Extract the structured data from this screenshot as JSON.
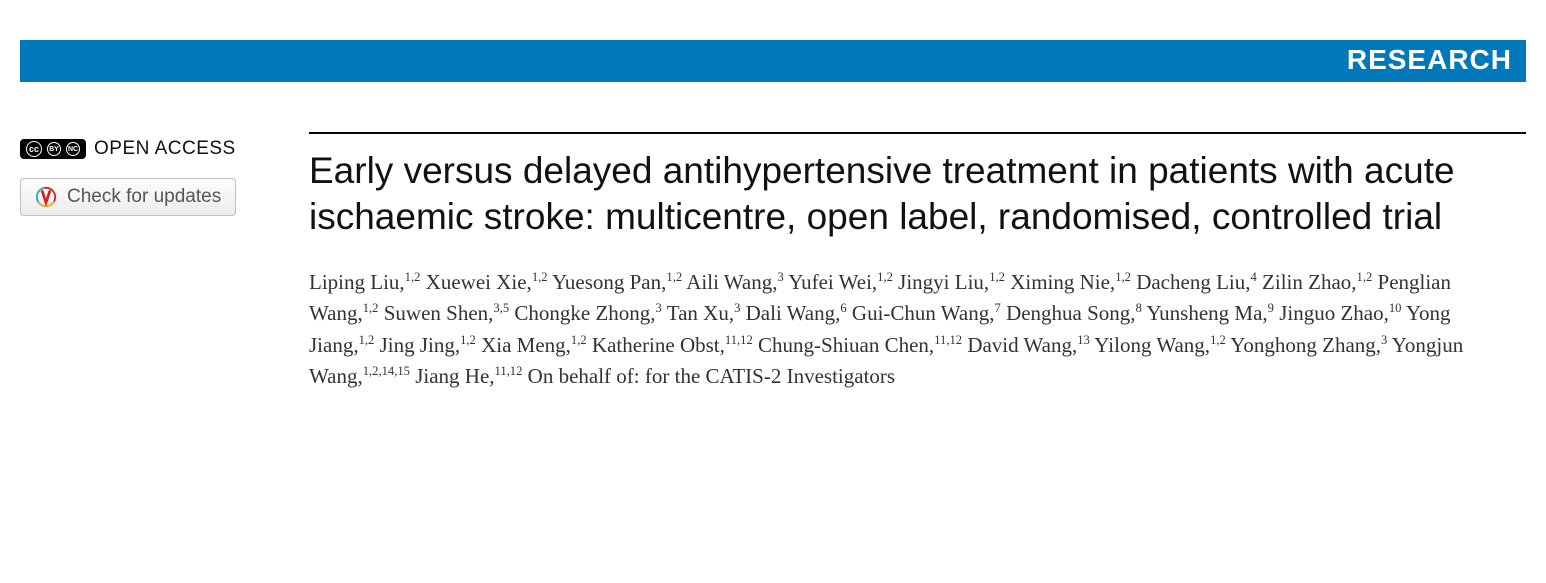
{
  "banner": {
    "label": "RESEARCH",
    "bg_color": "#0178ba",
    "text_color": "#ffffff"
  },
  "sidebar": {
    "open_access_label": "OPEN ACCESS",
    "cc_badge": {
      "cc": "cc",
      "by": "BY",
      "nc": "NC"
    },
    "updates_button_label": "Check for updates"
  },
  "article": {
    "title": "Early versus delayed antihypertensive treatment in patients with acute ischaemic stroke: multicentre, open label, randomised, controlled trial",
    "authors": [
      {
        "name": "Liping Liu",
        "aff": "1,2"
      },
      {
        "name": "Xuewei Xie",
        "aff": "1,2"
      },
      {
        "name": "Yuesong Pan",
        "aff": "1,2"
      },
      {
        "name": "Aili Wang",
        "aff": "3"
      },
      {
        "name": "Yufei Wei",
        "aff": "1,2"
      },
      {
        "name": "Jingyi Liu",
        "aff": "1,2"
      },
      {
        "name": "Ximing Nie",
        "aff": "1,2"
      },
      {
        "name": "Dacheng Liu",
        "aff": "4"
      },
      {
        "name": "Zilin Zhao",
        "aff": "1,2"
      },
      {
        "name": "Penglian Wang",
        "aff": "1,2"
      },
      {
        "name": "Suwen Shen",
        "aff": "3,5"
      },
      {
        "name": "Chongke Zhong",
        "aff": "3"
      },
      {
        "name": "Tan Xu",
        "aff": "3"
      },
      {
        "name": "Dali Wang",
        "aff": "6"
      },
      {
        "name": "Gui-Chun Wang",
        "aff": "7"
      },
      {
        "name": "Denghua Song",
        "aff": "8"
      },
      {
        "name": "Yunsheng Ma",
        "aff": "9"
      },
      {
        "name": "Jinguo Zhao",
        "aff": "10"
      },
      {
        "name": "Yong Jiang",
        "aff": "1,2"
      },
      {
        "name": "Jing Jing",
        "aff": "1,2"
      },
      {
        "name": "Xia Meng",
        "aff": "1,2"
      },
      {
        "name": "Katherine Obst",
        "aff": "11,12"
      },
      {
        "name": "Chung-Shiuan Chen",
        "aff": "11,12"
      },
      {
        "name": "David Wang",
        "aff": "13"
      },
      {
        "name": "Yilong Wang",
        "aff": "1,2"
      },
      {
        "name": "Yonghong Zhang",
        "aff": "3"
      },
      {
        "name": "Yongjun Wang",
        "aff": "1,2,14,15"
      },
      {
        "name": "Jiang He",
        "aff": "11,12"
      }
    ],
    "on_behalf": "On behalf of: for the CATIS-2 Investigators"
  }
}
